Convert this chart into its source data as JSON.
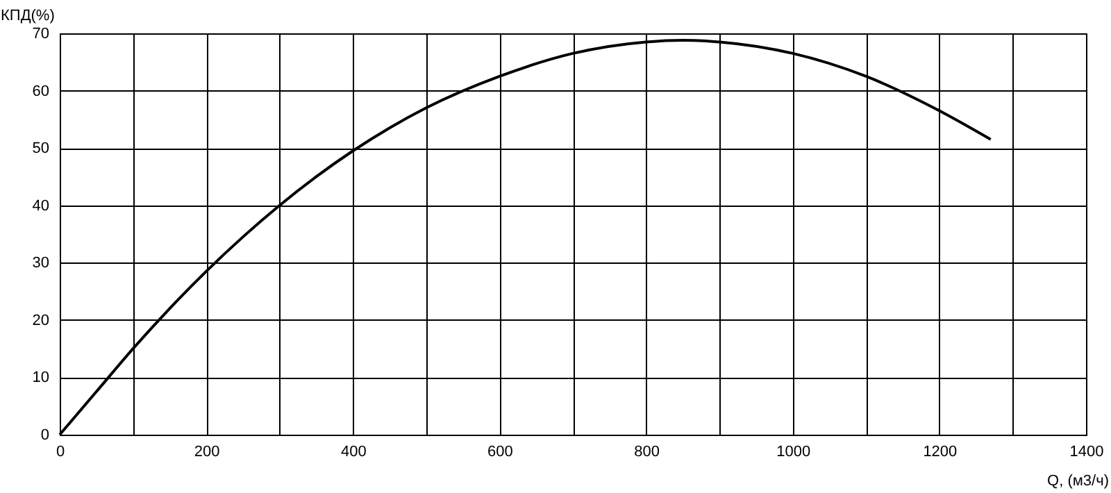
{
  "chart_data": {
    "type": "line",
    "xlabel": "Q, (м3/ч)",
    "ylabel": "КПД(%)",
    "x": [
      0,
      50,
      100,
      150,
      200,
      250,
      300,
      350,
      400,
      450,
      500,
      600,
      700,
      800,
      850,
      900,
      1000,
      1100,
      1200,
      1270
    ],
    "series": [
      {
        "color": "#000000",
        "values": [
          0,
          7.5,
          15,
          22,
          28.5,
          34.5,
          40,
          45,
          49.5,
          53.5,
          57,
          62.5,
          66.5,
          68.5,
          68.8,
          68.5,
          66.5,
          62.5,
          56.5,
          51.5
        ]
      }
    ],
    "xlim": [
      0,
      1400
    ],
    "xticks": [
      0,
      {
        "value": 100,
        "label": null
      },
      200,
      {
        "value": 300,
        "label": null
      },
      400,
      {
        "value": 500,
        "label": null
      },
      600,
      {
        "value": 700,
        "label": null
      },
      800,
      {
        "value": 900,
        "label": null
      },
      1000,
      {
        "value": 1100,
        "label": null
      },
      1200,
      {
        "value": 1300,
        "label": null
      },
      1400
    ],
    "ylim": [
      0,
      70
    ],
    "yticks": [
      0,
      10,
      20,
      30,
      40,
      50,
      60,
      70
    ],
    "grid": true,
    "marker": "none",
    "line_style": "solid"
  }
}
